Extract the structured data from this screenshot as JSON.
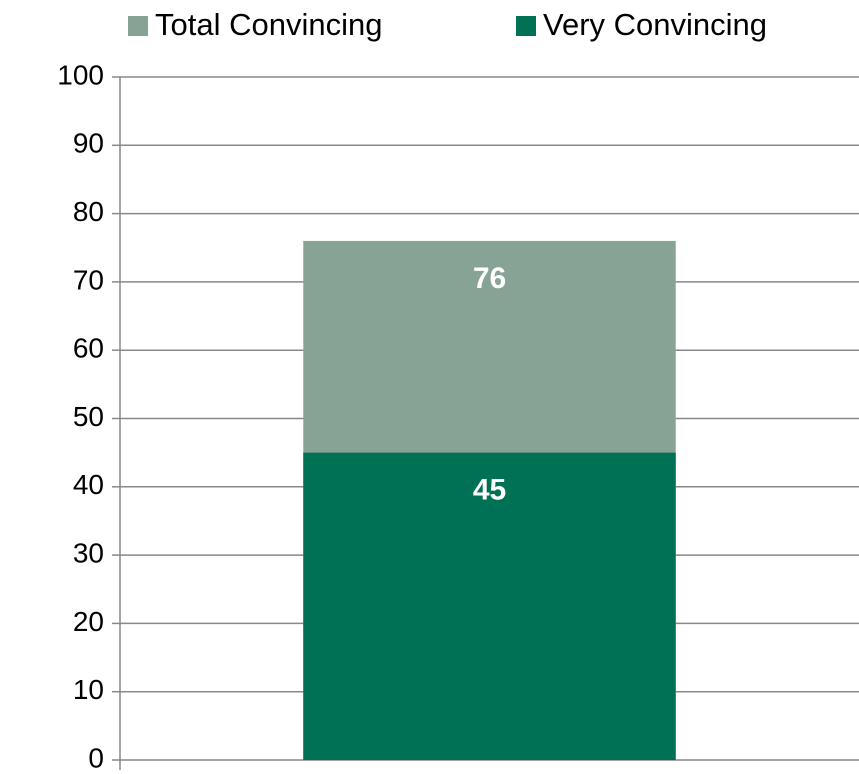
{
  "chart_data": {
    "type": "bar",
    "overlap": true,
    "categories": [
      null
    ],
    "series": [
      {
        "name": "Total Convincing",
        "color": "#87a396",
        "values": [
          76
        ]
      },
      {
        "name": "Very Convincing",
        "color": "#007155",
        "values": [
          45
        ]
      }
    ],
    "ylim": [
      0,
      100
    ],
    "yticks": [
      0,
      10,
      20,
      30,
      40,
      50,
      60,
      70,
      80,
      90,
      100
    ],
    "grid": true,
    "legend": "top"
  }
}
